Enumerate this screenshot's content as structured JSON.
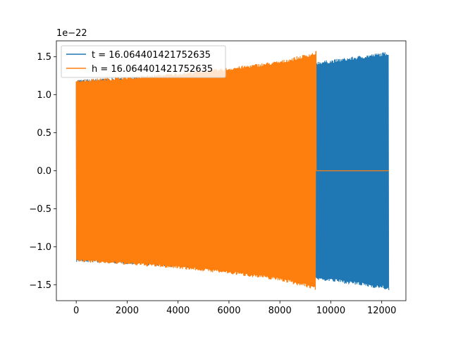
{
  "chart_data": {
    "type": "line",
    "title": "",
    "xlabel": "",
    "ylabel": "",
    "y_offset_label": "1e−22",
    "xlim": [
      -780,
      12950
    ],
    "ylim": [
      -1.71,
      1.71
    ],
    "x_ticks": [
      0,
      2000,
      4000,
      6000,
      8000,
      10000,
      12000
    ],
    "x_tick_labels": [
      "0",
      "2000",
      "4000",
      "6000",
      "8000",
      "10000",
      "12000"
    ],
    "y_ticks": [
      -1.5,
      -1.0,
      -0.5,
      0.0,
      0.5,
      1.0,
      1.5
    ],
    "y_tick_labels": [
      "−1.5",
      "−1.0",
      "−0.5",
      "0.0",
      "0.5",
      "1.0",
      "1.5"
    ],
    "grid": false,
    "legend_position": "top-left",
    "series": [
      {
        "name": "t = 16.064401421752635",
        "color": "#1f77b4",
        "description": "chirping oscillation, envelope grows from ~1.2 to ~1.57",
        "x_start": 0,
        "x_end": 12280,
        "envelope": [
          [
            0,
            1.2
          ],
          [
            2000,
            1.23
          ],
          [
            4000,
            1.27
          ],
          [
            6000,
            1.32
          ],
          [
            8000,
            1.39
          ],
          [
            10000,
            1.46
          ],
          [
            12280,
            1.57
          ]
        ]
      },
      {
        "name": "h = 16.064401421752635",
        "color": "#ff7f0e",
        "description": "chirping oscillation, envelope grows from ~1.2 to ~1.57 then flat zero",
        "x_start": 0,
        "x_end": 9420,
        "zero_until": 12280,
        "envelope": [
          [
            0,
            1.2
          ],
          [
            2000,
            1.24
          ],
          [
            4000,
            1.29
          ],
          [
            6000,
            1.36
          ],
          [
            8000,
            1.45
          ],
          [
            9420,
            1.57
          ]
        ]
      }
    ]
  }
}
